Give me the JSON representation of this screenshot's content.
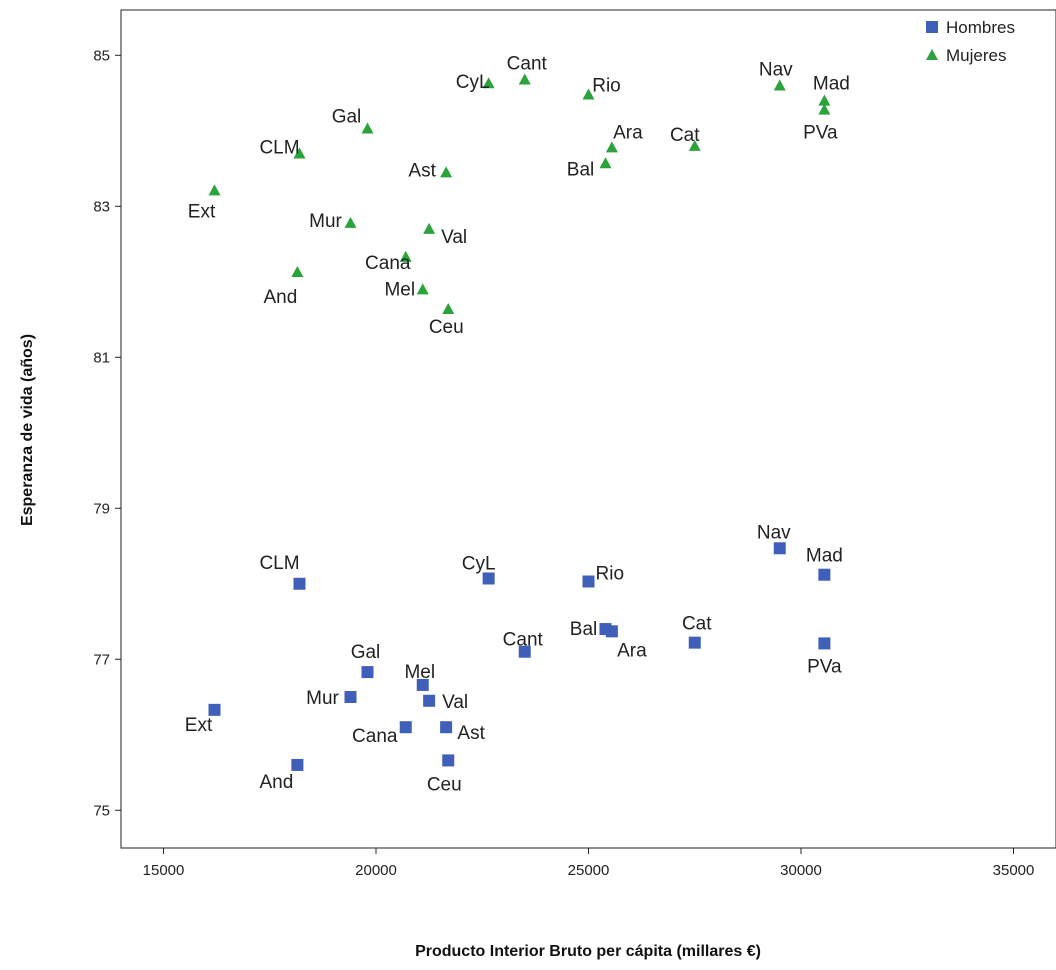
{
  "chart_data": {
    "type": "scatter",
    "title": "",
    "xlabel": "Producto Interior Bruto per cápita (millares €)",
    "ylabel": "Esperanza de vida (años)",
    "xlim": [
      14000,
      36000
    ],
    "ylim": [
      74.5,
      85.6
    ],
    "xticks": [
      15000,
      20000,
      25000,
      30000,
      35000
    ],
    "yticks": [
      75,
      77,
      79,
      81,
      83,
      85
    ],
    "grid": false,
    "legend_position": "top-right",
    "series": [
      {
        "name": "Hombres",
        "marker": "square",
        "color": "#3f5fb8",
        "points": [
          {
            "label": "CLM",
            "x": 18200,
            "y": 78.0
          },
          {
            "label": "CyL",
            "x": 22650,
            "y": 78.07
          },
          {
            "label": "Rio",
            "x": 25000,
            "y": 78.03
          },
          {
            "label": "Nav",
            "x": 29500,
            "y": 78.47
          },
          {
            "label": "Mad",
            "x": 30550,
            "y": 78.12
          },
          {
            "label": "Cant",
            "x": 23500,
            "y": 77.1
          },
          {
            "label": "Bal",
            "x": 25400,
            "y": 77.4
          },
          {
            "label": "Ara",
            "x": 25550,
            "y": 77.37
          },
          {
            "label": "Cat",
            "x": 27500,
            "y": 77.22
          },
          {
            "label": "PVa",
            "x": 30550,
            "y": 77.21
          },
          {
            "label": "Gal",
            "x": 19800,
            "y": 76.83
          },
          {
            "label": "Mel",
            "x": 21100,
            "y": 76.66
          },
          {
            "label": "Mur",
            "x": 19400,
            "y": 76.5
          },
          {
            "label": "Val",
            "x": 21250,
            "y": 76.45
          },
          {
            "label": "Ext",
            "x": 16200,
            "y": 76.33
          },
          {
            "label": "Cana",
            "x": 20700,
            "y": 76.1
          },
          {
            "label": "Ast",
            "x": 21650,
            "y": 76.1
          },
          {
            "label": "And",
            "x": 18150,
            "y": 75.6
          },
          {
            "label": "Ceu",
            "x": 21700,
            "y": 75.66
          }
        ]
      },
      {
        "name": "Mujeres",
        "marker": "triangle",
        "color": "#2aa33b",
        "points": [
          {
            "label": "CyL",
            "x": 22650,
            "y": 84.63
          },
          {
            "label": "Cant",
            "x": 23500,
            "y": 84.68
          },
          {
            "label": "Rio",
            "x": 25000,
            "y": 84.48
          },
          {
            "label": "Nav",
            "x": 29500,
            "y": 84.6
          },
          {
            "label": "Mad",
            "x": 30550,
            "y": 84.4
          },
          {
            "label": "PVa",
            "x": 30550,
            "y": 84.28
          },
          {
            "label": "Gal",
            "x": 19800,
            "y": 84.03
          },
          {
            "label": "CLM",
            "x": 18200,
            "y": 83.7
          },
          {
            "label": "Ara",
            "x": 25550,
            "y": 83.78
          },
          {
            "label": "Cat",
            "x": 27500,
            "y": 83.8
          },
          {
            "label": "Bal",
            "x": 25400,
            "y": 83.57
          },
          {
            "label": "Ast",
            "x": 21650,
            "y": 83.45
          },
          {
            "label": "Ext",
            "x": 16200,
            "y": 83.21
          },
          {
            "label": "Mur",
            "x": 19400,
            "y": 82.78
          },
          {
            "label": "Val",
            "x": 21250,
            "y": 82.7
          },
          {
            "label": "Cana",
            "x": 20700,
            "y": 82.33
          },
          {
            "label": "And",
            "x": 18150,
            "y": 82.13
          },
          {
            "label": "Mel",
            "x": 21100,
            "y": 81.9
          },
          {
            "label": "Ceu",
            "x": 21700,
            "y": 81.64
          }
        ]
      }
    ]
  }
}
